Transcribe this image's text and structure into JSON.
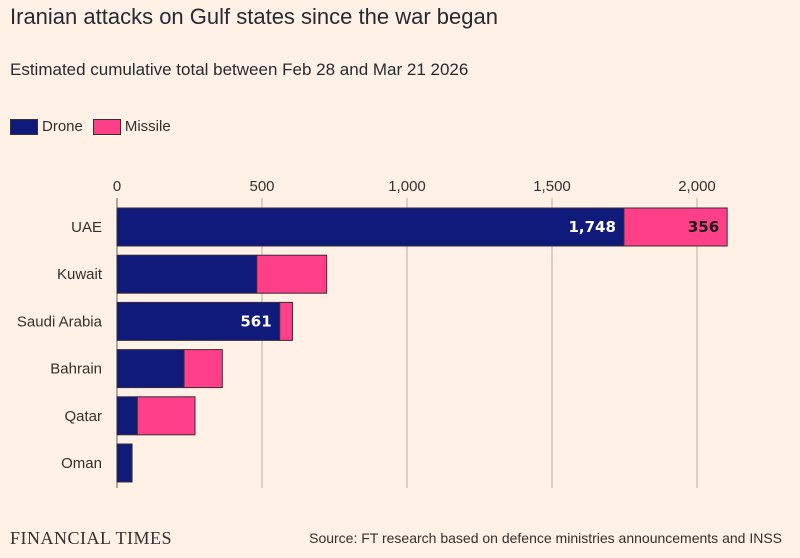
{
  "title": "Iranian attacks on Gulf states since the war began",
  "subtitle": "Estimated cumulative total between Feb 28 and Mar 21 2026",
  "source": "Source: FT research based on defence ministries announcements and INSS",
  "brand": "FINANCIAL TIMES",
  "colors": {
    "drone": "#0f1a7a",
    "missile": "#ff3f88",
    "background": "#fff1e5"
  },
  "chart_data": {
    "type": "bar",
    "orientation": "horizontal",
    "stacked": true,
    "categories": [
      "UAE",
      "Kuwait",
      "Saudi Arabia",
      "Bahrain",
      "Qatar",
      "Oman"
    ],
    "series": [
      {
        "name": "Drone",
        "values": [
          1748,
          482,
          561,
          231,
          70,
          52
        ],
        "labels": [
          "1,748",
          "",
          "561",
          "",
          "",
          ""
        ]
      },
      {
        "name": "Missile",
        "values": [
          356,
          241,
          44,
          132,
          199,
          0
        ],
        "labels": [
          "356",
          "",
          "",
          "",
          "",
          ""
        ]
      }
    ],
    "xlim": [
      0,
      2100
    ],
    "ticks": [
      0,
      500,
      1000,
      1500,
      2000
    ],
    "tick_labels": [
      "0",
      "500",
      "1,000",
      "1,500",
      "2,000"
    ],
    "grid": true,
    "legend": "top-left"
  }
}
